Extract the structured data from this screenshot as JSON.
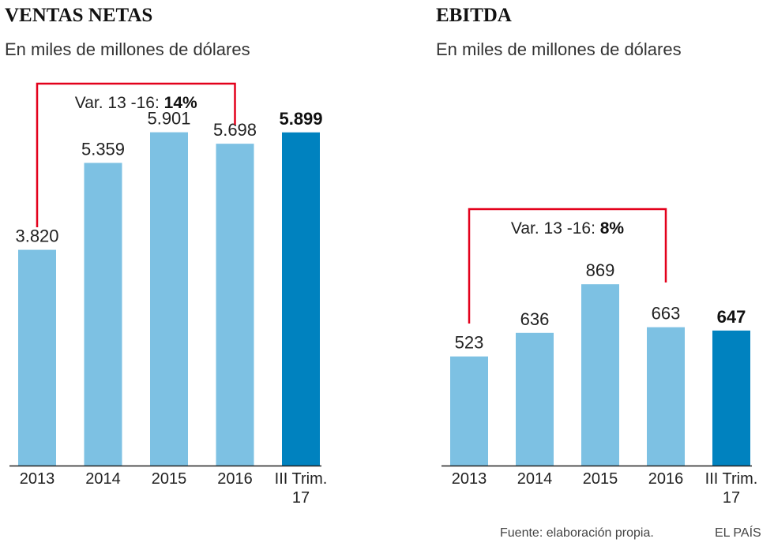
{
  "colors": {
    "bar": "#7dc1e3",
    "bar_highlight": "#0082bf",
    "bracket": "#e3001b",
    "axis": "#222222"
  },
  "chart_data": [
    {
      "type": "bar",
      "title": "VENTAS NETAS",
      "subtitle": "En miles de millones de dólares",
      "categories": [
        "2013",
        "2014",
        "2015",
        "2016",
        "III Trim.\n17"
      ],
      "values": [
        3.82,
        5.359,
        5.901,
        5.698,
        5.899
      ],
      "value_labels": [
        "3.820",
        "5.359",
        "5.901",
        "5.698",
        "5.899"
      ],
      "highlight_index": 4,
      "ylim": [
        0,
        6.65
      ],
      "annotation": {
        "text": "Var. 13 -16: ",
        "value": "14%",
        "from_index": 0,
        "to_index": 3
      }
    },
    {
      "type": "bar",
      "title": "EBITDA",
      "subtitle": "En miles de millones de dólares",
      "categories": [
        "2013",
        "2014",
        "2015",
        "2016",
        "III Trim.\n17"
      ],
      "values": [
        523,
        636,
        869,
        663,
        647
      ],
      "value_labels": [
        "523",
        "636",
        "869",
        "663",
        "647"
      ],
      "highlight_index": 4,
      "ylim": [
        0,
        1800
      ],
      "annotation": {
        "text": "Var. 13 -16: ",
        "value": "8%",
        "from_index": 0,
        "to_index": 3
      }
    }
  ],
  "footer": {
    "source": "Fuente: elaboración propia.",
    "brand": "EL PAÍS"
  }
}
